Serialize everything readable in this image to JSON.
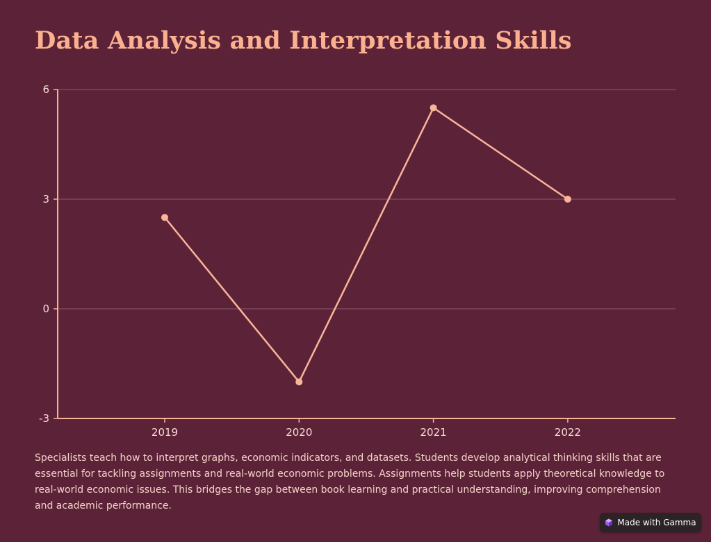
{
  "title": "Data Analysis and Interpretation Skills",
  "description": "Specialists teach how to interpret graphs, economic indicators, and datasets. Students develop analytical thinking skills that are essential for tackling assignments and real-world economic problems. Assignments help students apply theoretical knowledge to real-world economic issues. This bridges the gap between book learning and practical understanding, improving comprehension and academic performance.",
  "badge": {
    "label": "Made with Gamma",
    "icon": "gamma-logo-icon"
  },
  "colors": {
    "background": "#5c2338",
    "accent": "#fbb08f",
    "line": "#f9b59a",
    "gridline": "#8a5a6a"
  },
  "chart_data": {
    "type": "line",
    "title": "",
    "xlabel": "",
    "ylabel": "",
    "categories": [
      "2019",
      "2020",
      "2021",
      "2022"
    ],
    "series": [
      {
        "values": [
          2.5,
          -2,
          5.5,
          3
        ]
      }
    ],
    "ylim": [
      -3,
      6
    ],
    "yticks": [
      -3,
      0,
      3,
      6
    ],
    "grid": true,
    "legend": "none"
  }
}
